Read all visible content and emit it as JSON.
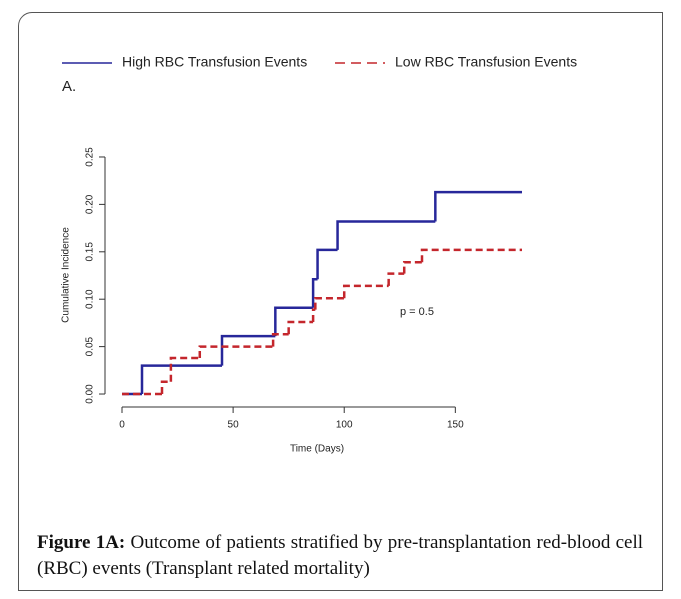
{
  "chart_data": {
    "type": "step",
    "panel_label": "A.",
    "xlabel": "Time (Days)",
    "ylabel": "Cumulative Incidence",
    "legend": "top",
    "annotation": "p = 0.5",
    "series": [
      {
        "name": "High RBC Transfusion Events",
        "color": "#27279a",
        "dash": false,
        "x": [
          0,
          9,
          45,
          69,
          86,
          88,
          97,
          141,
          180
        ],
        "values": [
          0,
          0.03,
          0.061,
          0.091,
          0.121,
          0.152,
          0.182,
          0.213,
          0.213
        ]
      },
      {
        "name": "Low RBC Transfusion Events",
        "color": "#c4262c",
        "dash": true,
        "x": [
          0,
          18,
          22,
          35,
          68,
          75,
          86,
          87,
          100,
          120,
          127,
          135,
          180
        ],
        "values": [
          0,
          0.013,
          0.038,
          0.05,
          0.063,
          0.076,
          0.089,
          0.101,
          0.114,
          0.127,
          0.139,
          0.152,
          0.152
        ]
      }
    ],
    "xlim": [
      -7.2,
      187.2
    ],
    "xticks": [
      0,
      50,
      100,
      150
    ],
    "ylim": [
      -0.01,
      0.26
    ],
    "yticks": [
      {
        "value": 0,
        "label": "0.00"
      },
      {
        "value": 0.05,
        "label": "0.05"
      },
      {
        "value": 0.1,
        "label": "0.10"
      },
      {
        "value": 0.15,
        "label": "0.15"
      },
      {
        "value": 0.2,
        "label": "0.20"
      },
      {
        "value": 0.25,
        "label": "0.25"
      }
    ]
  },
  "caption": {
    "label": "Figure 1A:",
    "text": "Outcome of patients stratified by pre-transplantation red-blood cell (RBC) events (Transplant related mortality)"
  }
}
